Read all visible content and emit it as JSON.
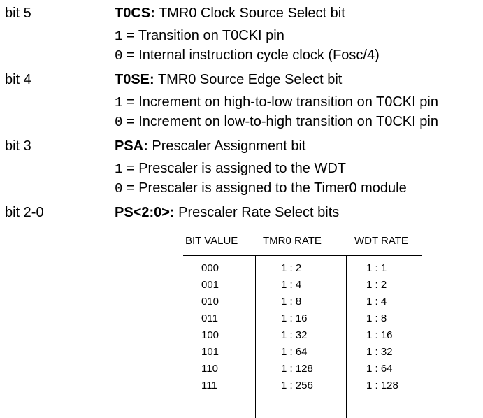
{
  "bits": [
    {
      "label": "bit 5",
      "name": "T0CS:",
      "description": " TMR0 Clock Source Select bit",
      "options": [
        {
          "code": "1",
          "text": " = Transition on T0CKI pin"
        },
        {
          "code": "0",
          "text": " = Internal instruction cycle clock (Fosc/4)"
        }
      ]
    },
    {
      "label": "bit 4",
      "name": "T0SE:",
      "description": " TMR0 Source Edge Select bit",
      "options": [
        {
          "code": "1",
          "text": " = Increment on high-to-low transition on T0CKI pin"
        },
        {
          "code": "0",
          "text": " = Increment on low-to-high transition on T0CKI pin"
        }
      ]
    },
    {
      "label": "bit 3",
      "name": "PSA:",
      "description": " Prescaler Assignment bit",
      "options": [
        {
          "code": "1",
          "text": " = Prescaler is assigned to the WDT"
        },
        {
          "code": "0",
          "text": " = Prescaler is assigned to the Timer0 module"
        }
      ]
    },
    {
      "label": "bit 2-0",
      "name": "PS<2:0>:",
      "description": " Prescaler Rate Select bits",
      "options": []
    }
  ],
  "rate_table": {
    "headers": [
      "BIT VALUE",
      "TMR0 RATE",
      "WDT RATE"
    ],
    "rows": [
      [
        "000",
        "1 : 2",
        "1 : 1"
      ],
      [
        "001",
        "1 : 4",
        "1 : 2"
      ],
      [
        "010",
        "1 : 8",
        "1 : 4"
      ],
      [
        "011",
        "1 : 16",
        "1 : 8"
      ],
      [
        "100",
        "1 : 32",
        "1 : 16"
      ],
      [
        "101",
        "1 : 64",
        "1 : 32"
      ],
      [
        "110",
        "1 : 128",
        "1 : 64"
      ],
      [
        "111",
        "1 : 256",
        "1 : 128"
      ]
    ]
  }
}
